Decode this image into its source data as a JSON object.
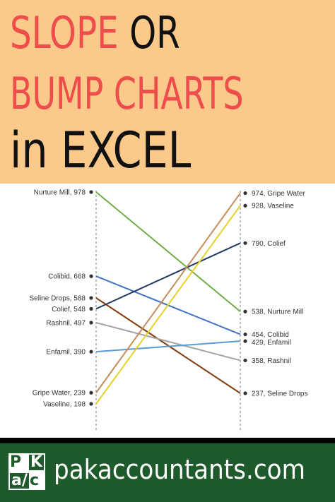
{
  "header": {
    "line1_part1": "SLOPE",
    "line1_part2": "OR",
    "line2": "BUMP CHARTS",
    "line3": "in EXCEL",
    "colors": {
      "background": "#fbc98a",
      "accent_red": "#ef4c4c",
      "text_dark": "#111111"
    }
  },
  "chart_data": {
    "type": "line",
    "categories": [
      "",
      ""
    ],
    "ylim": [
      150,
      1000
    ],
    "grid": false,
    "legend": "none",
    "series": [
      {
        "name": "Nurture Mill",
        "values": [
          978,
          538
        ],
        "color": "#70ad47",
        "left_label": "Nurture Mill, 978",
        "right_label": "538, Nurture Mill"
      },
      {
        "name": "Colibid",
        "values": [
          668,
          454
        ],
        "color": "#4472c4",
        "left_label": "Colibid, 668",
        "right_label": "454, Colibid"
      },
      {
        "name": "Seline Drops",
        "values": [
          588,
          237
        ],
        "color": "#843c0c",
        "left_label": "Seline Drops, 588",
        "right_label": "237, Seline Drops"
      },
      {
        "name": "Colief",
        "values": [
          548,
          790
        ],
        "color": "#203864",
        "left_label": "Colief, 548",
        "right_label": "790, Colief"
      },
      {
        "name": "Rashnil",
        "values": [
          497,
          358
        ],
        "color": "#a5a5a5",
        "left_label": "Rashnil, 497",
        "right_label": "358, Rashnil"
      },
      {
        "name": "Enfamil",
        "values": [
          390,
          429
        ],
        "color": "#5b9bd5",
        "left_label": "Enfamil, 390",
        "right_label": "429, Enfamil"
      },
      {
        "name": "Gripe Water",
        "values": [
          239,
          974
        ],
        "color": "#c58c5c",
        "left_label": "Gripe Water, 239",
        "right_label": "974, Gripe Water"
      },
      {
        "name": "Vaseline",
        "values": [
          198,
          928
        ],
        "color": "#e6d22c",
        "left_label": "Vaseline, 198",
        "right_label": "928, Vaseline"
      }
    ]
  },
  "footer": {
    "logo": {
      "p": "P",
      "k": "K",
      "a": "a/",
      "c": "c"
    },
    "site": "pakaccountants.com",
    "colors": {
      "background": "#1e5a2b"
    }
  }
}
